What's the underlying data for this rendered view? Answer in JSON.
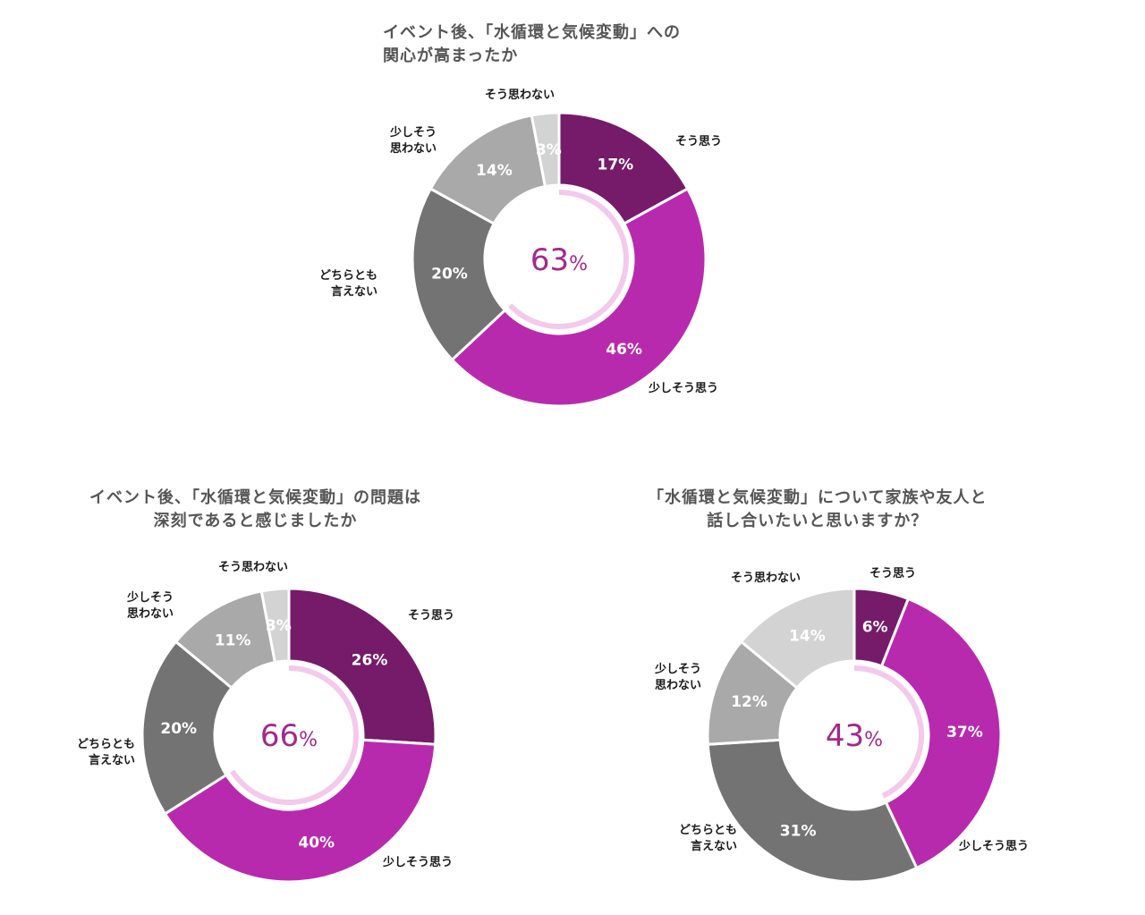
{
  "colors": {
    "strongly_agree": "#751b69",
    "somewhat_agree": "#b82aad",
    "neutral": "#737373",
    "somewhat_disagree": "#a9a9a9",
    "strongly_disagree": "#d3d3d3",
    "center_text": "#a2288c",
    "center_arc": "#f3c9ec"
  },
  "chart_data": [
    {
      "type": "pie",
      "title": "イベント後、「水循環と気候変動」への\n関心が高まったか",
      "center_value": "63",
      "center_unit": "%",
      "categories": [
        "そう思う",
        "少しそう思う",
        "どちらとも\n言えない",
        "少しそう\n思わない",
        "そう思わない"
      ],
      "values": [
        17,
        46,
        20,
        14,
        3
      ],
      "labels": [
        "17%",
        "46%",
        "20%",
        "14%",
        "3%"
      ]
    },
    {
      "type": "pie",
      "title": "イベント後、「水循環と気候変動」の問題は\n深刻であると感じましたか",
      "center_value": "66",
      "center_unit": "%",
      "categories": [
        "そう思う",
        "少しそう思う",
        "どちらとも\n言えない",
        "少しそう\n思わない",
        "そう思わない"
      ],
      "values": [
        26,
        40,
        20,
        11,
        3
      ],
      "labels": [
        "26%",
        "40%",
        "20%",
        "11%",
        "3%"
      ]
    },
    {
      "type": "pie",
      "title": "「水循環と気候変動」について家族や友人と\n話し合いたいと思いますか？",
      "center_value": "43",
      "center_unit": "%",
      "categories": [
        "そう思う",
        "少しそう思う",
        "どちらとも\n言えない",
        "少しそう\n思わない",
        "そう思わない"
      ],
      "values": [
        6,
        37,
        31,
        12,
        14
      ],
      "labels": [
        "6%",
        "37%",
        "31%",
        "12%",
        "14%"
      ]
    }
  ]
}
